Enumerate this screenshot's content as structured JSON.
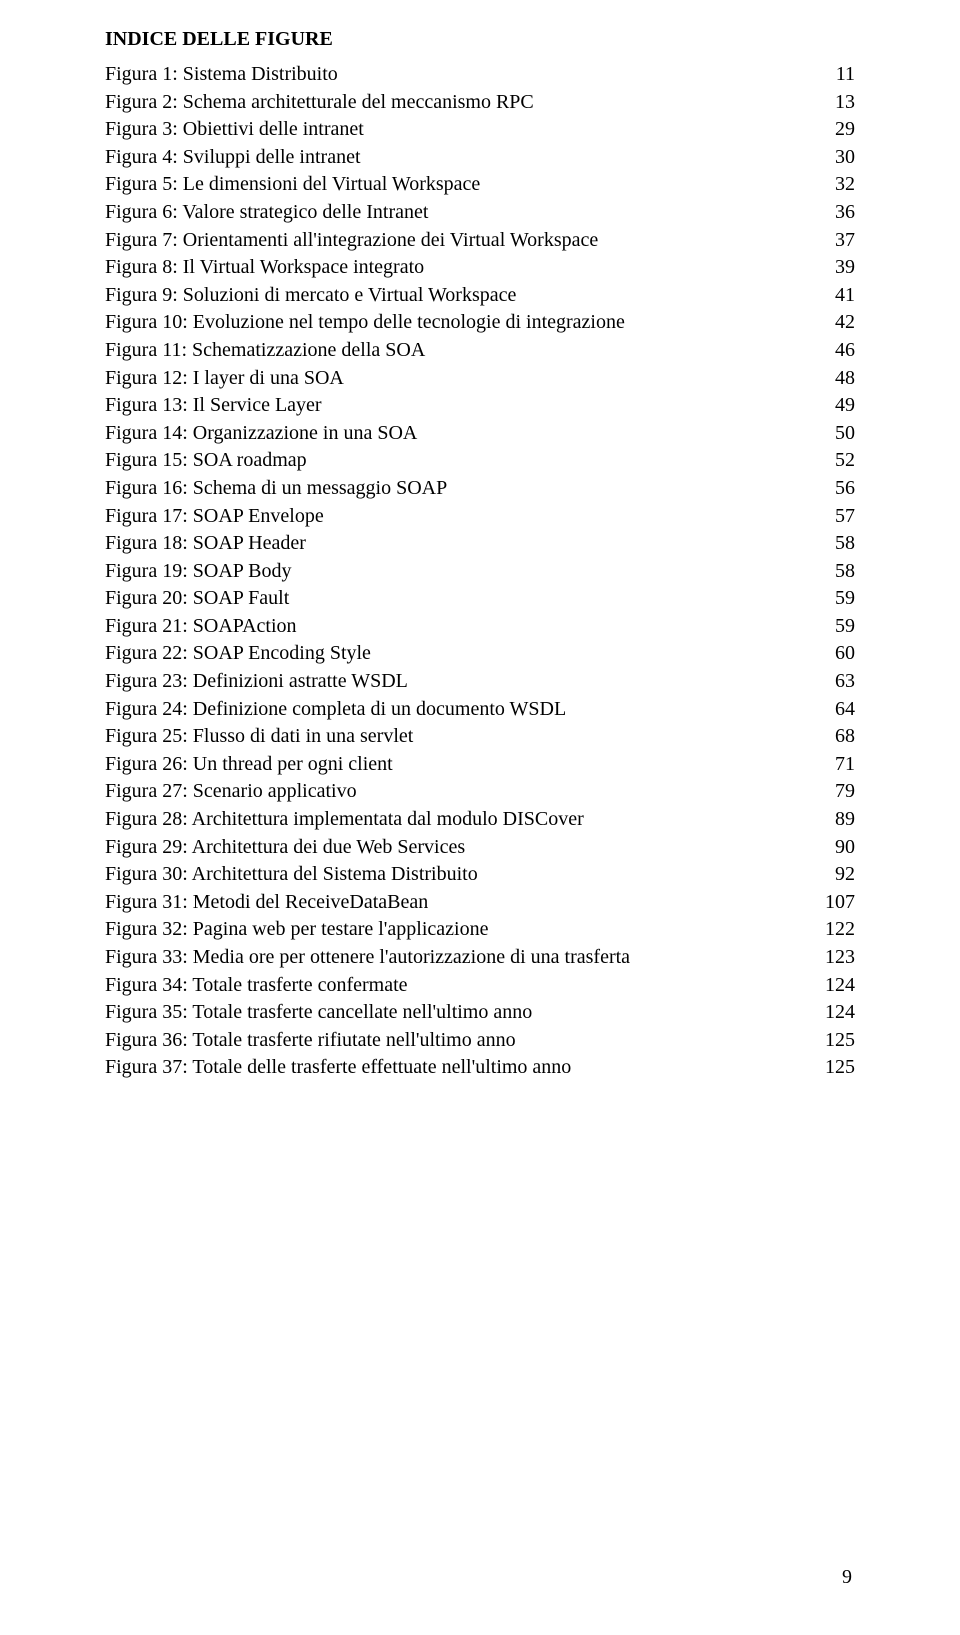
{
  "heading": "INDICE DELLE FIGURE",
  "page_number": "9",
  "entries": [
    {
      "label": "Figura 1: Sistema Distribuito",
      "page": "11"
    },
    {
      "label": "Figura 2: Schema architetturale del meccanismo RPC",
      "page": "13"
    },
    {
      "label": "Figura 3: Obiettivi delle intranet",
      "page": "29"
    },
    {
      "label": "Figura 4: Sviluppi delle intranet",
      "page": "30"
    },
    {
      "label": "Figura 5: Le dimensioni del Virtual Workspace",
      "page": "32"
    },
    {
      "label": "Figura 6: Valore strategico delle Intranet",
      "page": "36"
    },
    {
      "label": "Figura 7: Orientamenti all'integrazione dei Virtual Workspace",
      "page": "37"
    },
    {
      "label": "Figura 8: Il Virtual Workspace integrato",
      "page": "39"
    },
    {
      "label": "Figura 9:  Soluzioni di mercato e Virtual Workspace",
      "page": "41"
    },
    {
      "label": "Figura 10: Evoluzione nel tempo delle tecnologie di integrazione",
      "page": "42"
    },
    {
      "label": "Figura 11: Schematizzazione della SOA",
      "page": "46"
    },
    {
      "label": "Figura 12: I layer di una SOA",
      "page": "48"
    },
    {
      "label": "Figura 13: Il Service Layer",
      "page": "49"
    },
    {
      "label": "Figura 14: Organizzazione in una SOA",
      "page": "50"
    },
    {
      "label": "Figura 15: SOA roadmap",
      "page": "52"
    },
    {
      "label": "Figura 16: Schema di un messaggio SOAP",
      "page": "56"
    },
    {
      "label": "Figura 17: SOAP Envelope",
      "page": "57"
    },
    {
      "label": "Figura 18: SOAP Header",
      "page": "58"
    },
    {
      "label": "Figura 19: SOAP Body",
      "page": "58"
    },
    {
      "label": "Figura 20: SOAP Fault",
      "page": "59"
    },
    {
      "label": "Figura 21: SOAPAction",
      "page": "59"
    },
    {
      "label": "Figura 22: SOAP Encoding Style",
      "page": "60"
    },
    {
      "label": "Figura 23: Definizioni astratte WSDL",
      "page": "63"
    },
    {
      "label": "Figura 24: Definizione completa di un documento WSDL",
      "page": "64"
    },
    {
      "label": "Figura 25: Flusso di dati in una servlet",
      "page": "68"
    },
    {
      "label": "Figura 26: Un thread per ogni client",
      "page": "71"
    },
    {
      "label": "Figura 27: Scenario applicativo",
      "page": "79"
    },
    {
      "label": "Figura 28: Architettura implementata dal modulo DISCover",
      "page": "89"
    },
    {
      "label": "Figura 29: Architettura dei due Web Services",
      "page": "90"
    },
    {
      "label": "Figura 30: Architettura del Sistema Distribuito",
      "page": "92"
    },
    {
      "label": "Figura 31: Metodi del ReceiveDataBean",
      "page": "107"
    },
    {
      "label": "Figura 32: Pagina web per testare l'applicazione",
      "page": "122"
    },
    {
      "label": "Figura 33: Media ore per ottenere l'autorizzazione di una trasferta",
      "page": "123"
    },
    {
      "label": "Figura 34: Totale trasferte confermate",
      "page": "124"
    },
    {
      "label": "Figura 35: Totale trasferte cancellate nell'ultimo anno",
      "page": "124"
    },
    {
      "label": "Figura 36: Totale trasferte rifiutate nell'ultimo anno",
      "page": "125"
    },
    {
      "label": "Figura 37: Totale delle trasferte effettuate nell'ultimo anno",
      "page": "125"
    }
  ]
}
